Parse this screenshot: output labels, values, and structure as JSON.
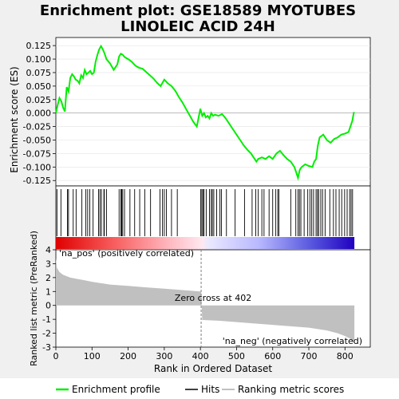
{
  "chart_data": {
    "type": "line",
    "title": "Enrichment plot: GSE18589 MYOTUBES LINOLEIC ACID 24H",
    "title_lines": [
      "Enrichment plot: GSE18589 MYOTUBES",
      "LINOLEIC ACID 24H"
    ],
    "es_panel": {
      "ylabel": "Enrichment score (ES)",
      "ylim": [
        -0.135,
        0.14
      ],
      "yticks": [
        -0.125,
        -0.1,
        -0.075,
        -0.05,
        -0.025,
        0.0,
        0.025,
        0.05,
        0.075,
        0.1,
        0.125
      ],
      "ytick_labels": [
        "-0.125",
        "-0.100",
        "-0.075",
        "-0.050",
        "-0.025",
        "0.000",
        "0.025",
        "0.050",
        "0.075",
        "0.100",
        "0.125"
      ],
      "series": [
        {
          "name": "Enrichment profile",
          "color": "#00ee00",
          "x": [
            0,
            5,
            10,
            15,
            20,
            25,
            30,
            35,
            40,
            45,
            50,
            55,
            60,
            65,
            70,
            75,
            80,
            85,
            90,
            95,
            100,
            105,
            110,
            115,
            120,
            125,
            130,
            135,
            140,
            150,
            160,
            170,
            175,
            180,
            185,
            190,
            200,
            210,
            220,
            230,
            240,
            250,
            260,
            270,
            280,
            290,
            300,
            310,
            320,
            330,
            340,
            350,
            360,
            370,
            380,
            390,
            400,
            405,
            410,
            415,
            420,
            425,
            430,
            435,
            440,
            450,
            460,
            470,
            480,
            490,
            500,
            510,
            520,
            530,
            540,
            550,
            555,
            560,
            570,
            580,
            590,
            600,
            610,
            620,
            630,
            640,
            650,
            660,
            665,
            670,
            675,
            680,
            690,
            700,
            710,
            715,
            720,
            725,
            730,
            740,
            750,
            760,
            770,
            780,
            790,
            800,
            810,
            815,
            820,
            825
          ],
          "y": [
            0.0,
            0.015,
            0.028,
            0.022,
            0.01,
            0.003,
            0.048,
            0.04,
            0.065,
            0.072,
            0.068,
            0.062,
            0.06,
            0.055,
            0.07,
            0.065,
            0.08,
            0.072,
            0.075,
            0.078,
            0.072,
            0.075,
            0.095,
            0.108,
            0.118,
            0.124,
            0.118,
            0.11,
            0.1,
            0.092,
            0.08,
            0.09,
            0.105,
            0.11,
            0.108,
            0.104,
            0.1,
            0.095,
            0.088,
            0.084,
            0.082,
            0.076,
            0.07,
            0.064,
            0.056,
            0.05,
            0.062,
            0.055,
            0.05,
            0.042,
            0.03,
            0.02,
            0.008,
            -0.004,
            -0.016,
            -0.025,
            0.008,
            -0.005,
            0.0,
            -0.008,
            -0.005,
            -0.01,
            0.0,
            -0.005,
            -0.003,
            -0.005,
            -0.002,
            -0.01,
            -0.02,
            -0.03,
            -0.04,
            -0.05,
            -0.06,
            -0.068,
            -0.075,
            -0.085,
            -0.09,
            -0.085,
            -0.082,
            -0.085,
            -0.08,
            -0.085,
            -0.075,
            -0.07,
            -0.078,
            -0.085,
            -0.09,
            -0.1,
            -0.11,
            -0.12,
            -0.105,
            -0.1,
            -0.095,
            -0.098,
            -0.1,
            -0.09,
            -0.085,
            -0.06,
            -0.045,
            -0.04,
            -0.05,
            -0.055,
            -0.048,
            -0.045,
            -0.04,
            -0.038,
            -0.035,
            -0.025,
            -0.015,
            0.002
          ]
        }
      ]
    },
    "hits_panel": {
      "legend_name": "Hits",
      "hit_positions": [
        3,
        14,
        32,
        35,
        48,
        56,
        72,
        83,
        88,
        94,
        103,
        118,
        122,
        126,
        133,
        134,
        140,
        175,
        180,
        182,
        185,
        190,
        205,
        218,
        232,
        246,
        262,
        288,
        295,
        300,
        306,
        320,
        336,
        401,
        404,
        407,
        410,
        416,
        425,
        430,
        433,
        437,
        445,
        454,
        458,
        472,
        496,
        522,
        543,
        553,
        560,
        570,
        576,
        590,
        600,
        608,
        614,
        617,
        650,
        664,
        670,
        674,
        678,
        687,
        697,
        703,
        708,
        713,
        720,
        724,
        727,
        733,
        738,
        745,
        758,
        768,
        775,
        784,
        791,
        799,
        806,
        813,
        817,
        821
      ]
    },
    "rank_panel": {
      "ylabel": "Ranked list metric (PreRanked)",
      "ylim": [
        -3,
        4
      ],
      "yticks": [
        -3,
        -2,
        -1,
        0,
        1,
        2,
        3,
        4
      ],
      "ytick_labels": [
        "-3",
        "-2",
        "-1",
        "0",
        "1",
        "2",
        "3",
        "4"
      ],
      "metric_x": [
        0,
        3,
        10,
        20,
        40,
        60,
        80,
        100,
        150,
        200,
        250,
        300,
        350,
        400,
        402,
        405,
        450,
        500,
        550,
        600,
        650,
        700,
        750,
        780,
        800,
        815,
        820,
        826
      ],
      "metric_y": [
        3.4,
        2.7,
        2.4,
        2.2,
        2.0,
        1.9,
        1.8,
        1.7,
        1.5,
        1.4,
        1.3,
        1.2,
        1.1,
        1.0,
        1.0,
        -1.05,
        -1.1,
        -1.2,
        -1.3,
        -1.4,
        -1.5,
        -1.6,
        -1.8,
        -2.0,
        -2.2,
        -2.4,
        -2.6,
        -2.7
      ],
      "color": "#c0c0c0",
      "zero_cross": 402,
      "zero_cross_label": "Zero cross at 402",
      "pos_label": "'na_pos' (positively correlated)",
      "neg_label": "'na_neg' (negatively correlated)",
      "pos_label_color": "#cc0000",
      "neg_label_color": "#0000cc"
    },
    "xaxis": {
      "xlabel": "Rank in Ordered Dataset",
      "xlim": [
        0,
        870
      ],
      "ticks": [
        0,
        100,
        200,
        300,
        400,
        500,
        600,
        700,
        800
      ],
      "tick_labels": [
        "0",
        "100",
        "200",
        "300",
        "400",
        "500",
        "600",
        "700",
        "800"
      ],
      "n_genes": 826
    },
    "legend": {
      "placement": "bottom",
      "items": [
        {
          "label": "Enrichment profile",
          "color": "#00ee00"
        },
        {
          "label": "Hits",
          "color": "#000000"
        },
        {
          "label": "Ranking metric scores",
          "color": "#c0c0c0"
        }
      ]
    }
  }
}
